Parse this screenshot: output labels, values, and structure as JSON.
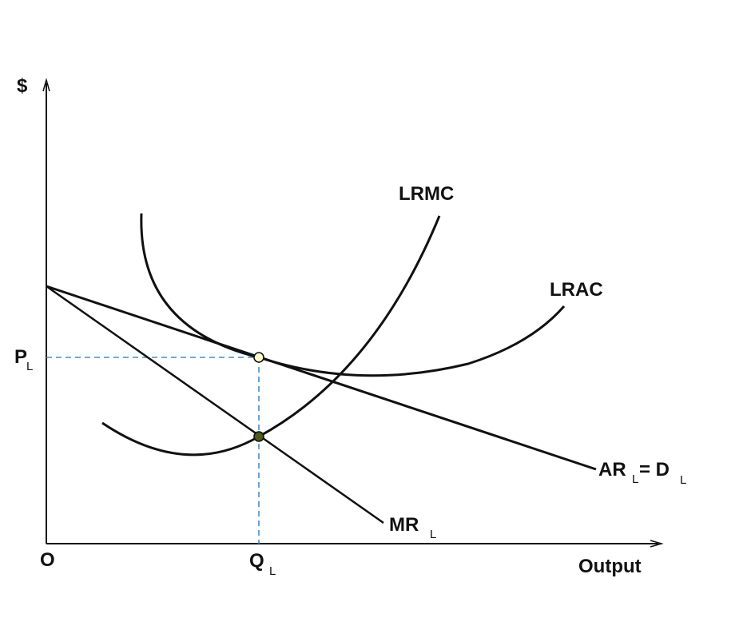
{
  "diagram": {
    "axes": {
      "y_label": "$",
      "x_label": "Output",
      "origin_label": "O"
    },
    "curves": {
      "lrmc": {
        "label": "LRMC"
      },
      "lrac": {
        "label": "LRAC"
      },
      "ar": {
        "label_main": "AR",
        "label_sub": "L",
        "label_eq": "= D",
        "label_sub2": "L"
      },
      "mr": {
        "label_main": "MR",
        "label_sub": "L"
      }
    },
    "markers": {
      "price": {
        "label_main": "P",
        "label_sub": "L"
      },
      "quantity": {
        "label_main": "Q",
        "label_sub": "L"
      }
    },
    "colors": {
      "curve": "#111111",
      "guide": "#3a8fd6",
      "equilibrium_price_point": "#fffbd0",
      "equilibrium_mr_point": "#4c5a1c"
    }
  }
}
